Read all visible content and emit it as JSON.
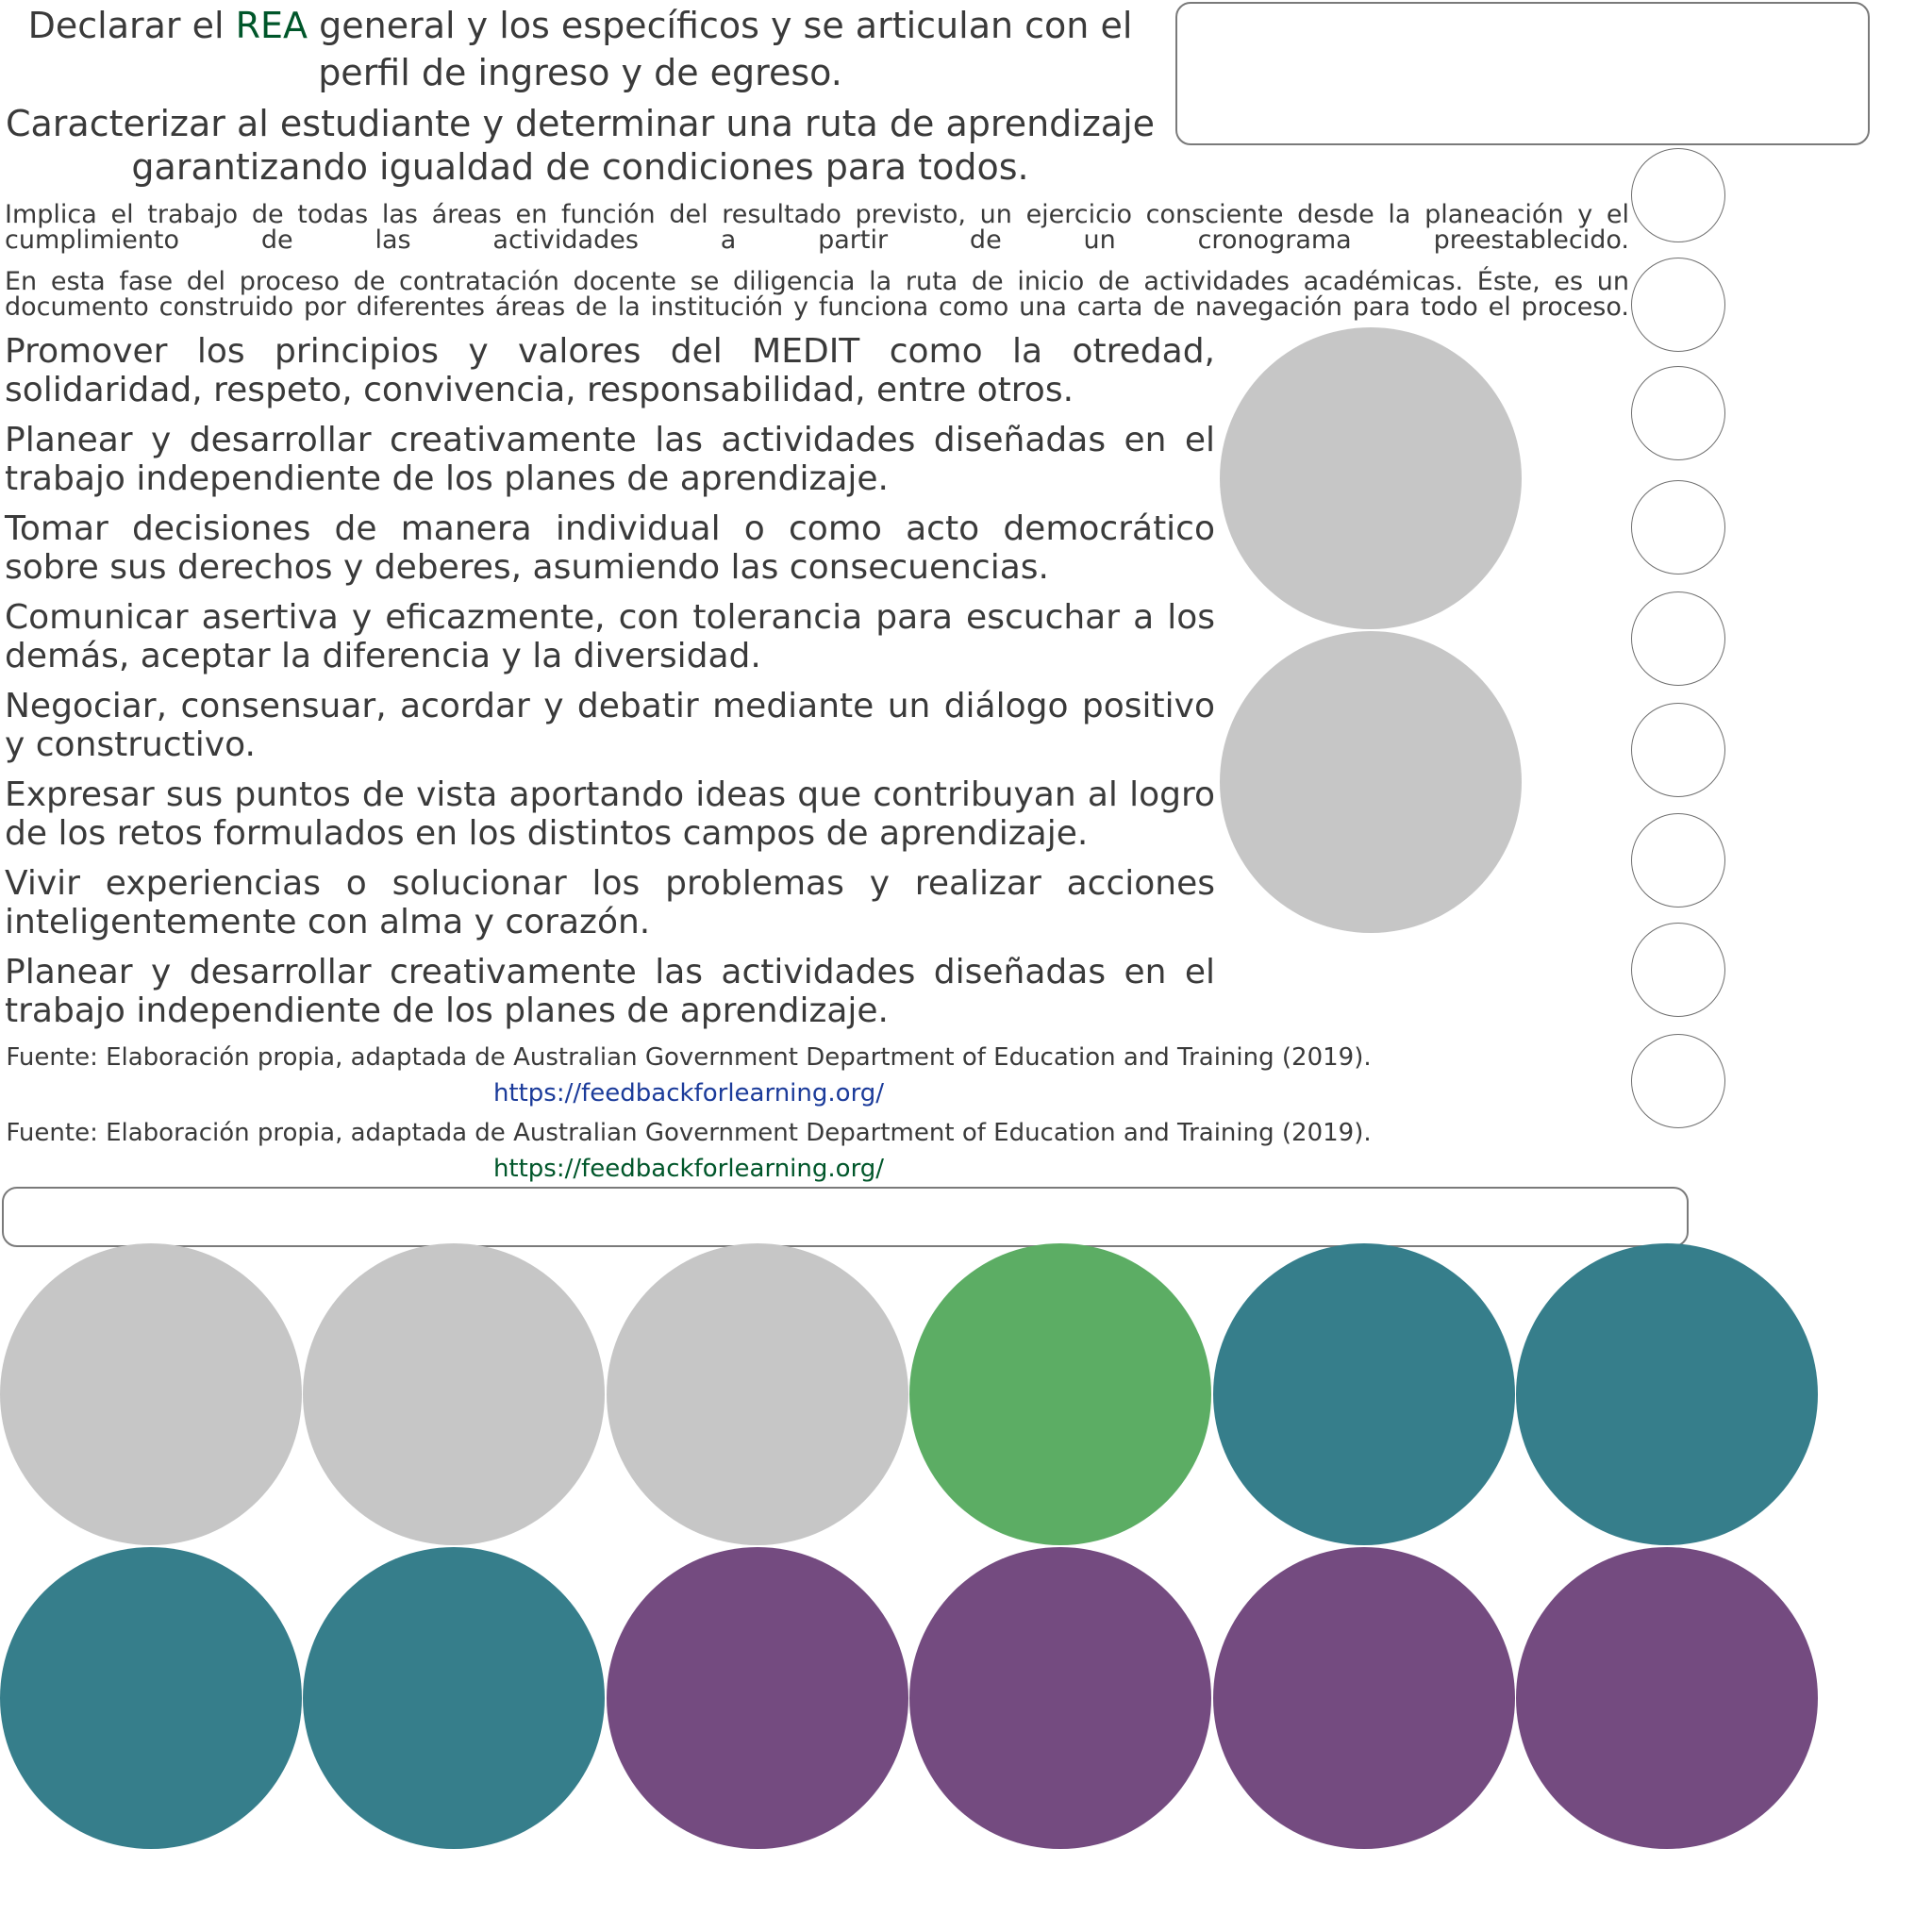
{
  "heading": {
    "line1_before": "Declarar el ",
    "line1_highlight": "REA",
    "line1_after": " general y los específicos y se articulan con el perfil de ingreso y de egreso.",
    "line2": "Caracterizar al estudiante y determinar una ruta de aprendizaje garantizando igualdad de condiciones para todos."
  },
  "paragraphs": {
    "small1": "Implica el trabajo de todas las áreas en función del resultado previsto, un ejercicio consciente desde la planeación y el cumplimiento de las actividades a partir de un cronograma preestablecido.",
    "small2": "En esta fase del proceso de contratación docente se diligencia la ruta de inicio de actividades académicas. Éste, es un documento construido por diferentes áreas de la institución y funciona como una carta de navegación para todo el proceso."
  },
  "items": [
    "Promover los principios y valores del MEDIT como la otredad, solidaridad, respeto, convivencia, responsabilidad, entre otros.",
    "Planear y desarrollar creativamente las actividades diseñadas en el trabajo independiente de los planes de aprendizaje.",
    "Tomar decisiones de manera individual o como acto democrático sobre sus derechos y deberes, asumiendo las consecuencias.",
    "Comunicar asertiva y eficazmente, con tolerancia para escuchar a los demás, aceptar la diferencia y la diversidad.",
    "Negociar, consensuar, acordar y debatir mediante un diálogo positivo y constructivo.",
    "Expresar sus puntos de vista aportando ideas que contribuyan al logro de los retos formulados en los distintos campos de aprendizaje.",
    "Vivir experiencias o solucionar los problemas y realizar acciones inteligentemente con alma y corazón.",
    "Planear y desarrollar creativamente las actividades diseñadas en el trabajo independiente de los planes de aprendizaje."
  ],
  "sources": [
    {
      "text": "Fuente: Elaboración propia, adaptada de Australian Government Department of Education and Training (2019).",
      "link": "https://feedbackforlearning.org/"
    },
    {
      "text": "Fuente: Elaboración propia, adaptada de Australian Government Department of Education and Training (2019).",
      "link": "https://feedbackforlearning.org/"
    }
  ],
  "colors": {
    "grey": "#c6c6c6",
    "green": "#5cad64",
    "teal": "#367e8b",
    "purple": "#744b80",
    "highlight_text": "#00562a",
    "link_blue": "#1b3b9a",
    "link_green": "#00562a"
  }
}
